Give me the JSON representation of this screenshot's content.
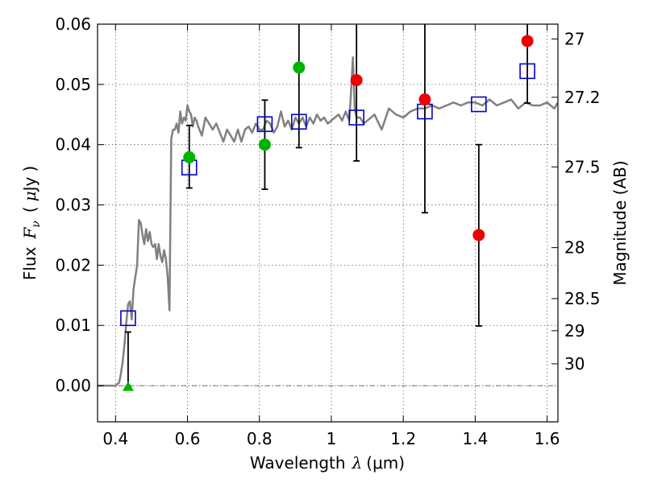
{
  "chart_data": {
    "type": "scatter",
    "title": "",
    "xlabel_text": "Wavelength",
    "xlabel_symbol": "λ",
    "xlabel_unit": "(μm)",
    "ylabel_text": "Flux",
    "ylabel_symbol": "F",
    "ylabel_subscript": "ν",
    "ylabel_unit_open": "(",
    "ylabel_unit_mu": "μ",
    "ylabel_unit_rest": "Jy",
    "ylabel_unit_close": ")",
    "y2label": "Magnitude (AB)",
    "xlim": [
      0.35,
      1.63
    ],
    "ylim": [
      -0.006,
      0.06
    ],
    "xticks": [
      0.4,
      0.6,
      0.8,
      1.0,
      1.2,
      1.4,
      1.6
    ],
    "xtick_labels": [
      "0.4",
      "0.6",
      "0.8",
      "1",
      "1.2",
      "1.4",
      "1.6"
    ],
    "yticks": [
      0.0,
      0.01,
      0.02,
      0.03,
      0.04,
      0.05,
      0.06
    ],
    "ytick_labels": [
      "0.00",
      "0.01",
      "0.02",
      "0.03",
      "0.04",
      "0.05",
      "0.06"
    ],
    "mag_ticks": [
      27,
      27.2,
      27.5,
      28,
      28.5,
      29,
      30
    ],
    "mag_tick_labels": [
      "27",
      "27.2",
      "27.5",
      "28",
      "28.5",
      "29",
      "30"
    ],
    "grid": true,
    "colors": {
      "model": "#808080",
      "synthetic": "#0000cc",
      "detection": "#00b300",
      "upper_limit": "#ee0000",
      "errorbar": "#000000"
    },
    "model_spectrum": {
      "x": [
        0.35,
        0.4,
        0.41,
        0.415,
        0.42,
        0.425,
        0.43,
        0.435,
        0.44,
        0.445,
        0.45,
        0.455,
        0.46,
        0.465,
        0.47,
        0.475,
        0.48,
        0.485,
        0.49,
        0.495,
        0.5,
        0.505,
        0.51,
        0.515,
        0.52,
        0.525,
        0.53,
        0.535,
        0.54,
        0.545,
        0.55,
        0.555,
        0.56,
        0.565,
        0.57,
        0.575,
        0.58,
        0.585,
        0.59,
        0.595,
        0.6,
        0.605,
        0.61,
        0.615,
        0.62,
        0.625,
        0.63,
        0.64,
        0.65,
        0.66,
        0.67,
        0.68,
        0.69,
        0.7,
        0.71,
        0.72,
        0.73,
        0.74,
        0.75,
        0.76,
        0.77,
        0.78,
        0.79,
        0.8,
        0.81,
        0.82,
        0.83,
        0.84,
        0.85,
        0.86,
        0.87,
        0.88,
        0.89,
        0.9,
        0.91,
        0.92,
        0.93,
        0.94,
        0.95,
        0.96,
        0.97,
        0.98,
        0.99,
        1.0,
        1.01,
        1.02,
        1.03,
        1.04,
        1.05,
        1.055,
        1.06,
        1.065,
        1.07,
        1.08,
        1.09,
        1.1,
        1.12,
        1.14,
        1.16,
        1.18,
        1.2,
        1.22,
        1.24,
        1.26,
        1.28,
        1.3,
        1.32,
        1.34,
        1.36,
        1.38,
        1.4,
        1.42,
        1.44,
        1.46,
        1.48,
        1.5,
        1.52,
        1.54,
        1.56,
        1.58,
        1.6,
        1.62,
        1.63
      ],
      "y": [
        0.0,
        0.0,
        0.0005,
        0.002,
        0.004,
        0.007,
        0.0105,
        0.0135,
        0.014,
        0.011,
        0.016,
        0.018,
        0.02,
        0.0275,
        0.027,
        0.025,
        0.0235,
        0.026,
        0.024,
        0.0255,
        0.0235,
        0.023,
        0.0235,
        0.021,
        0.0235,
        0.0215,
        0.0205,
        0.0225,
        0.021,
        0.018,
        0.0125,
        0.041,
        0.0425,
        0.0425,
        0.0435,
        0.042,
        0.0455,
        0.0435,
        0.0445,
        0.044,
        0.0465,
        0.0455,
        0.045,
        0.043,
        0.0445,
        0.044,
        0.043,
        0.0415,
        0.0445,
        0.0435,
        0.0425,
        0.0435,
        0.042,
        0.0405,
        0.0425,
        0.0415,
        0.0405,
        0.0425,
        0.0405,
        0.0425,
        0.043,
        0.042,
        0.0435,
        0.0425,
        0.0425,
        0.044,
        0.0435,
        0.042,
        0.043,
        0.0455,
        0.043,
        0.044,
        0.0425,
        0.0445,
        0.0435,
        0.0445,
        0.043,
        0.0445,
        0.0435,
        0.045,
        0.044,
        0.0445,
        0.0435,
        0.044,
        0.0445,
        0.045,
        0.044,
        0.0455,
        0.044,
        0.049,
        0.0545,
        0.046,
        0.0445,
        0.0445,
        0.0435,
        0.044,
        0.045,
        0.0425,
        0.046,
        0.045,
        0.0445,
        0.0455,
        0.046,
        0.046,
        0.0465,
        0.046,
        0.0465,
        0.047,
        0.0465,
        0.047,
        0.047,
        0.0465,
        0.0475,
        0.0465,
        0.047,
        0.0475,
        0.046,
        0.047,
        0.0465,
        0.0465,
        0.047,
        0.046,
        0.047
      ]
    },
    "synthetic_points": {
      "x": [
        0.435,
        0.605,
        0.815,
        0.91,
        1.07,
        1.26,
        1.41,
        1.545
      ],
      "y": [
        0.0112,
        0.0362,
        0.0434,
        0.0438,
        0.0445,
        0.0455,
        0.0467,
        0.0522
      ]
    },
    "detections": {
      "x": [
        0.605,
        0.815,
        0.91
      ],
      "y": [
        0.0379,
        0.04,
        0.0528
      ],
      "yerr_low": [
        0.0328,
        0.0326,
        0.0395
      ],
      "yerr_high": [
        0.0432,
        0.0474,
        0.06
      ]
    },
    "marginal_points": {
      "x": [
        1.07,
        1.26,
        1.41,
        1.545
      ],
      "y": [
        0.0507,
        0.0475,
        0.025,
        0.0572
      ],
      "yerr_low": [
        0.0373,
        0.0287,
        0.0099,
        0.0469
      ],
      "yerr_high": [
        0.06,
        0.06,
        0.04,
        0.06
      ]
    },
    "nondetection": {
      "x": 0.435,
      "y": -0.0002,
      "yerr_high": 0.0089
    }
  }
}
